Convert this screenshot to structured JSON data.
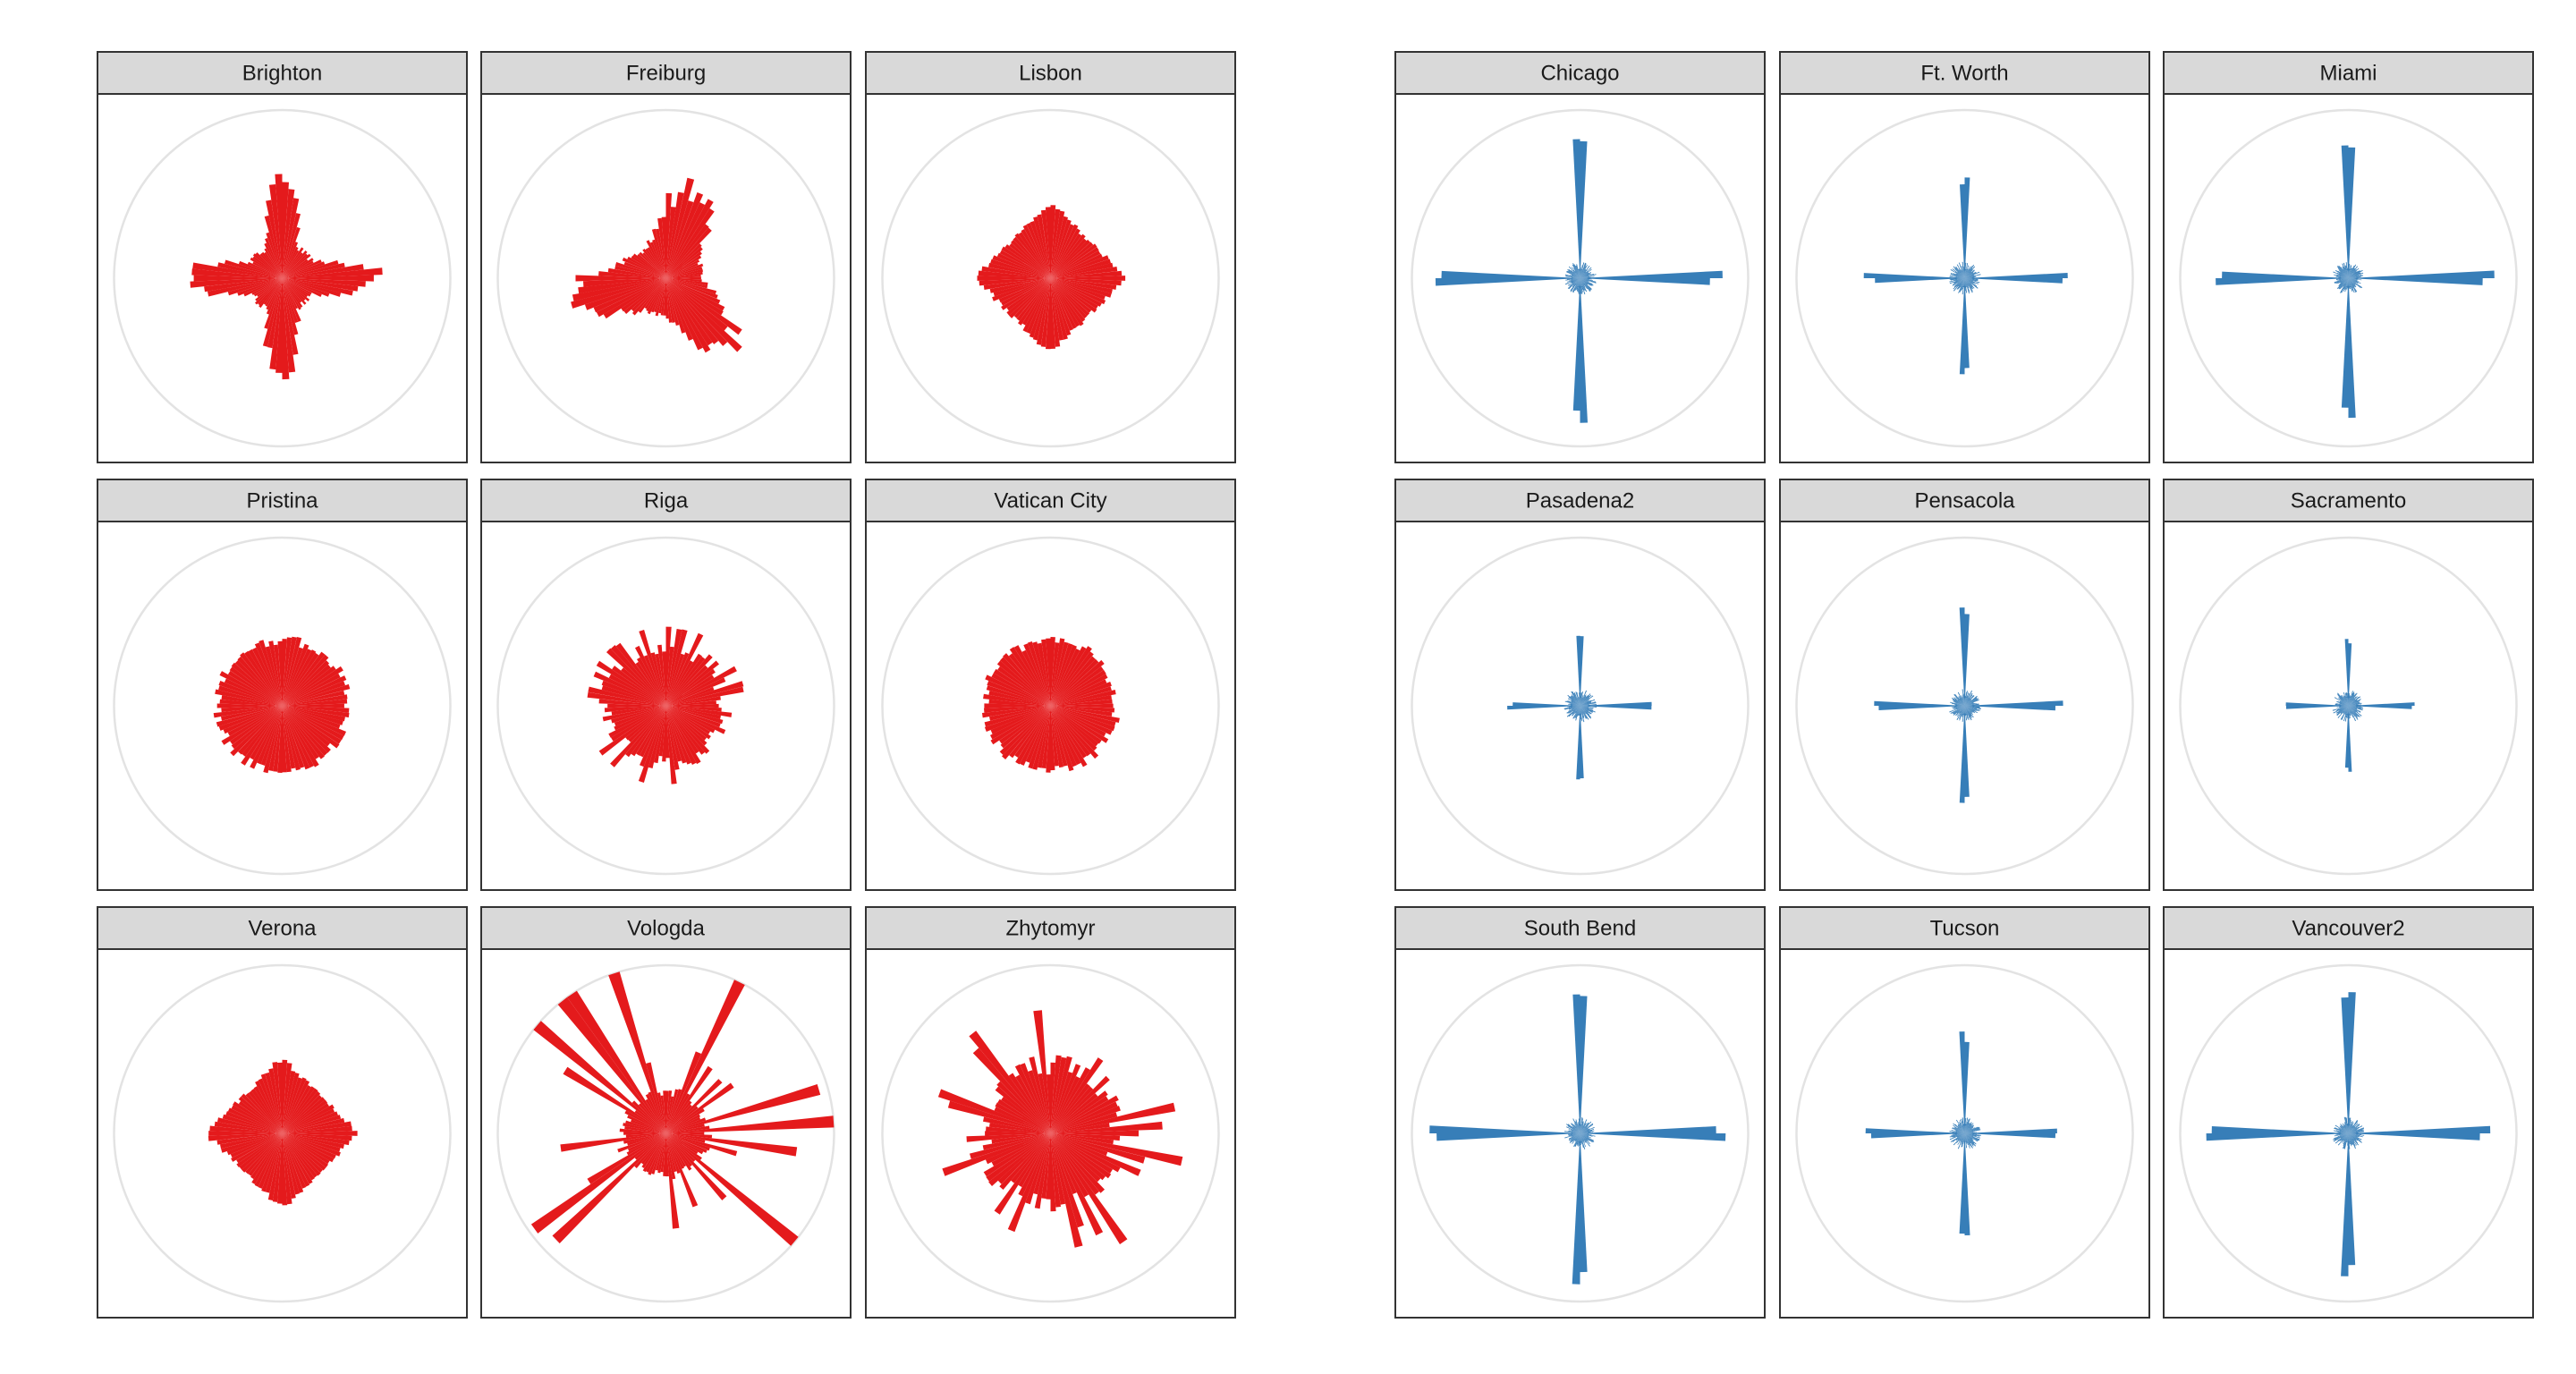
{
  "colors": {
    "europe": "#E41A1C",
    "usa": "#377EB8",
    "strip_fill": "#D9D9D9",
    "panel_border": "#333333",
    "circle": "#E3E3E3"
  },
  "chart_data": [
    {
      "type": "bar",
      "coord": "polar",
      "title": "",
      "color": "#E41A1C",
      "grid": true,
      "panels": [
        {
          "name": "Brighton",
          "pattern": "cross-heavy",
          "r_max": 0.6
        },
        {
          "name": "Freiburg",
          "pattern": "tri",
          "r_max": 0.6
        },
        {
          "name": "Lisbon",
          "pattern": "diamond",
          "r_max": 0.5
        },
        {
          "name": "Pristina",
          "pattern": "round",
          "r_max": 0.42
        },
        {
          "name": "Riga",
          "pattern": "round-spiky",
          "r_max": 0.45
        },
        {
          "name": "Vatican City",
          "pattern": "round",
          "r_max": 0.42
        },
        {
          "name": "Verona",
          "pattern": "diamond",
          "r_max": 0.5
        },
        {
          "name": "Vologda",
          "pattern": "star-spiky",
          "r_max": 0.9
        },
        {
          "name": "Zhytomyr",
          "pattern": "star-medium",
          "r_max": 0.6
        }
      ]
    },
    {
      "type": "bar",
      "coord": "polar",
      "title": "",
      "color": "#377EB8",
      "grid": true,
      "panels": [
        {
          "name": "Chicago",
          "pattern": "grid-cross",
          "r_max": 0.87
        },
        {
          "name": "Ft. Worth",
          "pattern": "grid-cross",
          "r_max": 0.62
        },
        {
          "name": "Miami",
          "pattern": "grid-cross",
          "r_max": 0.88
        },
        {
          "name": "Pasadena2",
          "pattern": "grid-cross",
          "r_max": 0.45
        },
        {
          "name": "Pensacola",
          "pattern": "grid-cross",
          "r_max": 0.6
        },
        {
          "name": "Sacramento",
          "pattern": "grid-cross",
          "r_max": 0.42
        },
        {
          "name": "South Bend",
          "pattern": "grid-cross",
          "r_max": 0.9
        },
        {
          "name": "Tucson",
          "pattern": "grid-cross",
          "r_max": 0.62
        },
        {
          "name": "Vancouver2",
          "pattern": "grid-cross",
          "r_max": 0.9
        }
      ]
    }
  ]
}
